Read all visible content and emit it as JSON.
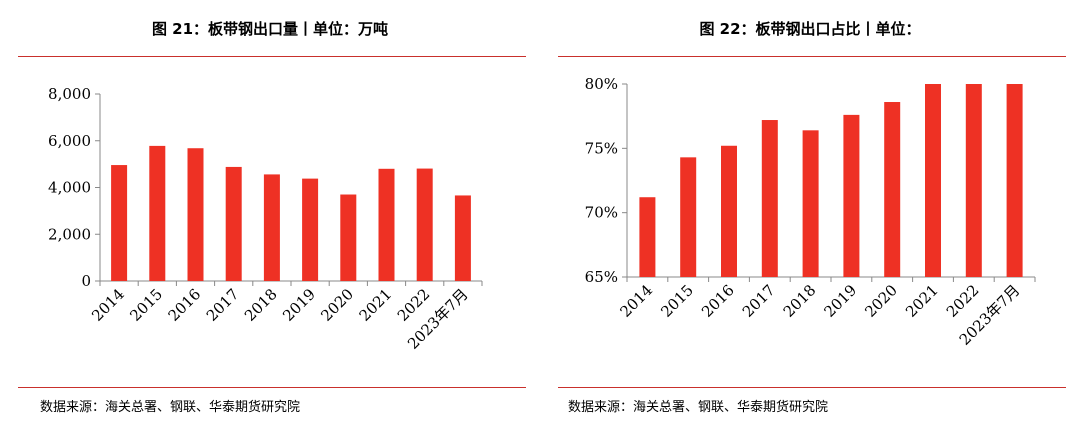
{
  "colors": {
    "bar": "#ee3124",
    "axis": "#888888",
    "rule": "#c9302c"
  },
  "chart_data": [
    {
      "type": "bar",
      "title": "图 21：板带钢出口量丨单位：万吨",
      "categories": [
        "2014",
        "2015",
        "2016",
        "2017",
        "2018",
        "2019",
        "2020",
        "2021",
        "2022",
        "2023年7月"
      ],
      "values": [
        4960,
        5780,
        5680,
        4880,
        4560,
        4380,
        3700,
        4800,
        4810,
        3660
      ],
      "ylim": [
        0,
        8000
      ],
      "yticks": [
        0,
        2000,
        4000,
        6000,
        8000
      ],
      "ytick_labels": [
        "0",
        "2,000",
        "4,000",
        "6,000",
        "8,000"
      ],
      "source": "数据来源：海关总署、钢联、华泰期货研究院"
    },
    {
      "type": "bar",
      "title": "图 22：板带钢出口占比丨单位：",
      "categories": [
        "2014",
        "2015",
        "2016",
        "2017",
        "2018",
        "2019",
        "2020",
        "2021",
        "2022",
        "2023年7月"
      ],
      "values": [
        71.2,
        74.3,
        75.2,
        77.2,
        76.4,
        77.6,
        78.6,
        80.0,
        80.0,
        80.0
      ],
      "ylim": [
        65,
        80
      ],
      "yticks": [
        65,
        70,
        75,
        80
      ],
      "ytick_labels": [
        "65%",
        "70%",
        "75%",
        "80%"
      ],
      "source": "数据来源：海关总署、钢联、华泰期货研究院"
    }
  ]
}
